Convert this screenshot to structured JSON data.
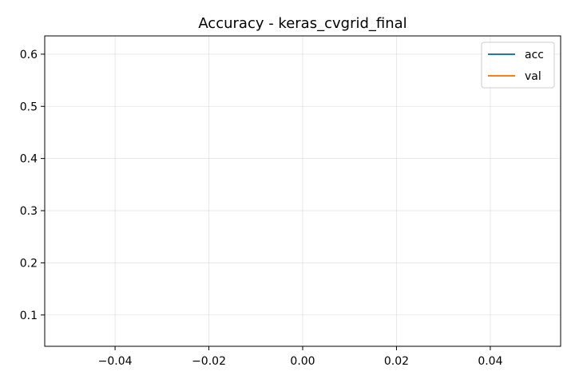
{
  "chart_data": {
    "type": "line",
    "title": "Accuracy - keras_cvgrid_final",
    "xlabel": "",
    "ylabel": "",
    "xlim": [
      -0.055,
      0.055
    ],
    "ylim": [
      0.04,
      0.635
    ],
    "x_ticks": [
      -0.04,
      -0.02,
      0.0,
      0.02,
      0.04
    ],
    "x_tick_labels": [
      "−0.04",
      "−0.02",
      "0.00",
      "0.02",
      "0.04"
    ],
    "y_ticks": [
      0.1,
      0.2,
      0.3,
      0.4,
      0.5,
      0.6
    ],
    "y_tick_labels": [
      "0.1",
      "0.2",
      "0.3",
      "0.4",
      "0.5",
      "0.6"
    ],
    "grid": true,
    "legend_position": "top-right",
    "series": [
      {
        "name": "acc",
        "color": "#1f77b4",
        "x": [],
        "y": []
      },
      {
        "name": "val",
        "color": "#ff7f0e",
        "x": [],
        "y": []
      }
    ]
  }
}
